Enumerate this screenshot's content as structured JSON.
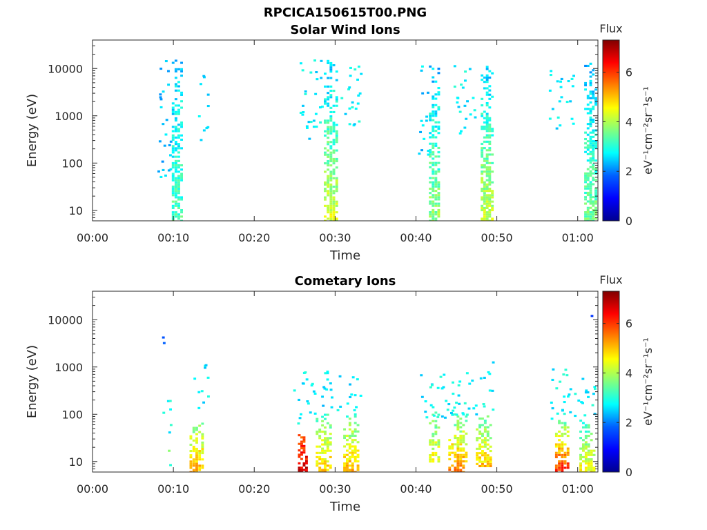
{
  "figure_title": "RPCICA150615T00.PNG",
  "colors": {
    "jet": [
      "#00008f",
      "#0000ff",
      "#0080ff",
      "#00ffff",
      "#80ff80",
      "#ffff00",
      "#ff8000",
      "#ff0000",
      "#800000"
    ],
    "axis": "#262626"
  },
  "chart_data": [
    {
      "type": "heatmap",
      "title": "Solar Wind Ions",
      "xlabel": "Time",
      "ylabel": "Energy (eV)",
      "x_unit": "minutes",
      "xlim": [
        0,
        62.5
      ],
      "ylim": [
        6,
        40000
      ],
      "yscale": "log",
      "x_ticks": [
        0,
        10,
        20,
        30,
        40,
        50,
        60
      ],
      "x_tick_labels": [
        "00:00",
        "00:10",
        "00:20",
        "00:30",
        "00:40",
        "00:50",
        "01:00"
      ],
      "y_ticks": [
        10,
        100,
        1000,
        10000
      ],
      "y_tick_labels": [
        "10",
        "100",
        "1000",
        "10000"
      ],
      "colorbar": {
        "title": "Flux",
        "label": "eV⁻¹cm⁻²sr⁻¹s⁻¹",
        "range": [
          0,
          7.3
        ],
        "ticks": [
          0,
          2,
          4,
          6
        ],
        "tick_labels": [
          "0",
          "2",
          "4",
          "6"
        ]
      },
      "bursts": [
        {
          "t": [
            9.8,
            11.2
          ],
          "e": [
            6,
            18000
          ],
          "flux_hi": 2.3,
          "flux_lo": 3.3
        },
        {
          "t": [
            28.6,
            30.4
          ],
          "e": [
            6,
            16000
          ],
          "flux_hi": 2.3,
          "flux_lo": 4.3
        },
        {
          "t": [
            41.6,
            43.0
          ],
          "e": [
            6,
            15000
          ],
          "flux_hi": 2.2,
          "flux_lo": 3.8
        },
        {
          "t": [
            48.0,
            49.6
          ],
          "e": [
            6,
            12000
          ],
          "flux_hi": 2.3,
          "flux_lo": 4.2
        },
        {
          "t": [
            60.8,
            62.4
          ],
          "e": [
            6,
            14000
          ],
          "flux_hi": 2.2,
          "flux_lo": 3.6
        }
      ],
      "sparse": [
        {
          "t": [
            8.0,
            9.6
          ],
          "e": [
            40,
            15000
          ],
          "flux": 2.3
        },
        {
          "t": [
            13.0,
            14.2
          ],
          "e": [
            300,
            10000
          ],
          "flux": 2.6
        },
        {
          "t": [
            25.6,
            28.4
          ],
          "e": [
            300,
            15000
          ],
          "flux": 2.6
        },
        {
          "t": [
            30.6,
            33.4
          ],
          "e": [
            600,
            12000
          ],
          "flux": 2.7
        },
        {
          "t": [
            40.2,
            41.4
          ],
          "e": [
            150,
            15000
          ],
          "flux": 2.4
        },
        {
          "t": [
            44.6,
            47.2
          ],
          "e": [
            400,
            12000
          ],
          "flux": 2.7
        },
        {
          "t": [
            56.4,
            59.4
          ],
          "e": [
            500,
            10000
          ],
          "flux": 2.6
        }
      ]
    },
    {
      "type": "heatmap",
      "title": "Cometary Ions",
      "xlabel": "Time",
      "ylabel": "Energy (eV)",
      "x_unit": "minutes",
      "xlim": [
        0,
        62.5
      ],
      "ylim": [
        6,
        40000
      ],
      "yscale": "log",
      "x_ticks": [
        0,
        10,
        20,
        30,
        40,
        50,
        60
      ],
      "x_tick_labels": [
        "00:00",
        "00:10",
        "00:20",
        "00:30",
        "00:40",
        "00:50",
        "01:00"
      ],
      "y_ticks": [
        10,
        100,
        1000,
        10000
      ],
      "y_tick_labels": [
        "10",
        "100",
        "1000",
        "10000"
      ],
      "colorbar": {
        "title": "Flux",
        "label": "eV⁻¹cm⁻²sr⁻¹s⁻¹",
        "range": [
          0,
          7.3
        ],
        "ticks": [
          0,
          2,
          4,
          6
        ],
        "tick_labels": [
          "0",
          "2",
          "4",
          "6"
        ]
      },
      "bursts": [
        {
          "t": [
            12.0,
            13.8
          ],
          "e": [
            6,
            70
          ],
          "flux_hi": 3.6,
          "flux_lo": 5.2
        },
        {
          "t": [
            25.4,
            26.6
          ],
          "e": [
            6,
            40
          ],
          "flux_hi": 5.5,
          "flux_lo": 6.8
        },
        {
          "t": [
            27.6,
            29.6
          ],
          "e": [
            6,
            120
          ],
          "flux_hi": 3.2,
          "flux_lo": 5.0
        },
        {
          "t": [
            31.0,
            33.0
          ],
          "e": [
            6,
            110
          ],
          "flux_hi": 3.2,
          "flux_lo": 5.2
        },
        {
          "t": [
            41.6,
            43.0
          ],
          "e": [
            10,
            120
          ],
          "flux_hi": 3.2,
          "flux_lo": 4.6
        },
        {
          "t": [
            44.0,
            46.4
          ],
          "e": [
            6,
            110
          ],
          "flux_hi": 3.2,
          "flux_lo": 5.6
        },
        {
          "t": [
            47.4,
            49.4
          ],
          "e": [
            8,
            100
          ],
          "flux_hi": 3.2,
          "flux_lo": 5.0
        },
        {
          "t": [
            57.2,
            59.0
          ],
          "e": [
            6,
            80
          ],
          "flux_hi": 3.4,
          "flux_lo": 6.2
        },
        {
          "t": [
            60.2,
            62.2
          ],
          "e": [
            6,
            80
          ],
          "flux_hi": 3.0,
          "flux_lo": 4.6
        }
      ],
      "sparse": [
        {
          "t": [
            8.2,
            9.6
          ],
          "e": [
            40,
            250
          ],
          "flux": 2.8
        },
        {
          "t": [
            9.2,
            9.8
          ],
          "e": [
            7,
            20
          ],
          "flux": 3.4
        },
        {
          "t": [
            12.4,
            14.2
          ],
          "e": [
            120,
            1100
          ],
          "flux": 2.7
        },
        {
          "t": [
            24.8,
            27.4
          ],
          "e": [
            60,
            1000
          ],
          "flux": 2.7
        },
        {
          "t": [
            28.0,
            33.2
          ],
          "e": [
            120,
            900
          ],
          "flux": 2.6
        },
        {
          "t": [
            40.4,
            49.6
          ],
          "e": [
            80,
            800
          ],
          "flux": 2.7
        },
        {
          "t": [
            56.6,
            62.4
          ],
          "e": [
            70,
            900
          ],
          "flux": 2.7
        }
      ],
      "points": [
        {
          "t": 8.6,
          "e": 4200,
          "flux": 1.5
        },
        {
          "t": 8.7,
          "e": 3200,
          "flux": 1.6
        },
        {
          "t": 61.6,
          "e": 12000,
          "flux": 1.3
        },
        {
          "t": 49.4,
          "e": 1250,
          "flux": 2.4
        }
      ]
    }
  ]
}
